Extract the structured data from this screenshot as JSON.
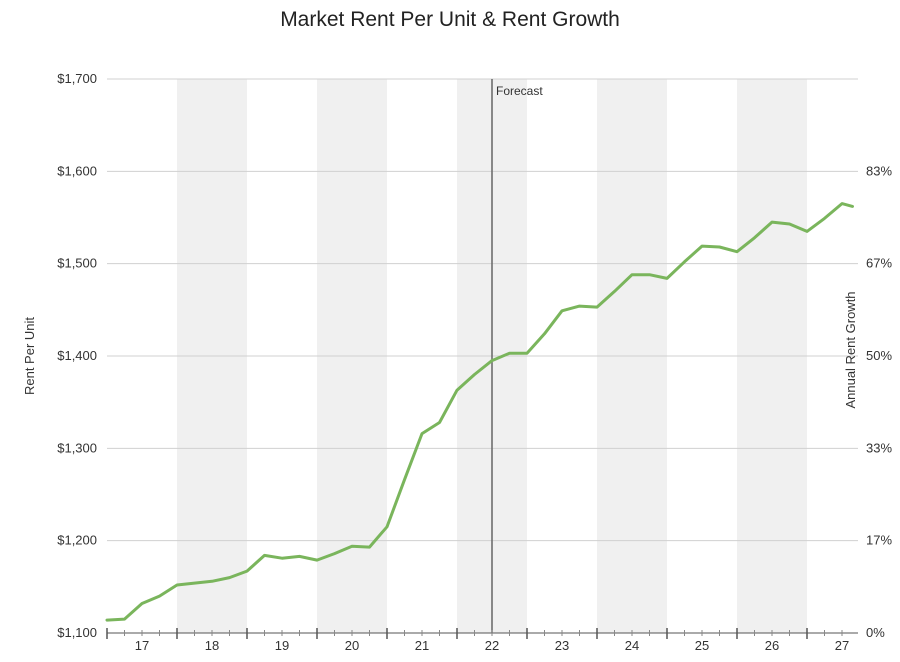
{
  "chart_data": {
    "type": "line",
    "title": "Market Rent Per Unit & Rent Growth",
    "ylabel": "Rent Per Unit",
    "y2label": "Annual Rent Growth",
    "ylim": [
      1100,
      1700
    ],
    "y_ticks": [
      "$1,100",
      "$1,200",
      "$1,300",
      "$1,400",
      "$1,500",
      "$1,600",
      "$1,700"
    ],
    "y_tick_values": [
      1100,
      1200,
      1300,
      1400,
      1500,
      1600,
      1700
    ],
    "y2_ticks": [
      "0%",
      "17%",
      "33%",
      "50%",
      "67%",
      "83%"
    ],
    "x_ticks": [
      "17",
      "18",
      "19",
      "20",
      "21",
      "22",
      "23",
      "24",
      "25",
      "26",
      "27"
    ],
    "xlim": [
      2016.5,
      2027.15
    ],
    "shaded_years": [
      2018,
      2020,
      2022,
      2024,
      2026
    ],
    "forecast": {
      "label": "Forecast",
      "x": 2022.0
    },
    "grid": true,
    "series": [
      {
        "color": "#7ab55c",
        "x": [
          2016.5,
          2016.75,
          2017.0,
          2017.25,
          2017.5,
          2017.75,
          2018.0,
          2018.25,
          2018.5,
          2018.75,
          2019.0,
          2019.25,
          2019.5,
          2019.75,
          2020.0,
          2020.25,
          2020.5,
          2020.75,
          2021.0,
          2021.25,
          2021.5,
          2021.75,
          2022.0,
          2022.25,
          2022.5,
          2022.75,
          2023.0,
          2023.25,
          2023.5,
          2023.75,
          2024.0,
          2024.25,
          2024.5,
          2024.75,
          2025.0,
          2025.25,
          2025.5,
          2025.75,
          2026.0,
          2026.25,
          2026.5,
          2026.75,
          2027.0,
          2027.15
        ],
        "y": [
          1114,
          1115,
          1132,
          1140,
          1152,
          1154,
          1156,
          1160,
          1167,
          1184,
          1181,
          1183,
          1179,
          1186,
          1194,
          1193,
          1215,
          1266,
          1316,
          1328,
          1363,
          1380,
          1395,
          1403,
          1403,
          1424,
          1449,
          1454,
          1453,
          1470,
          1488,
          1488,
          1484,
          1502,
          1519,
          1518,
          1513,
          1528,
          1545,
          1543,
          1535,
          1549,
          1565,
          1562
        ]
      }
    ]
  }
}
